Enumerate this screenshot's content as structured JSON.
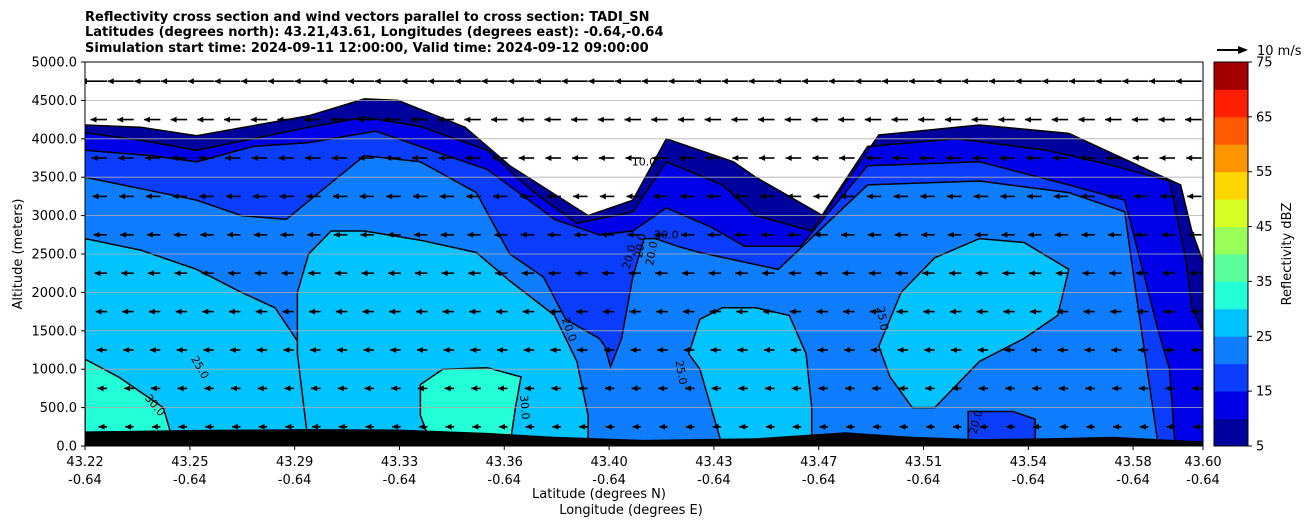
{
  "chart_data": {
    "type": "contour",
    "title": [
      "Reflectivity cross section and wind vectors parallel to cross section: TADI_SN",
      "Latitudes (degrees north): 43.21,43.61, Longitudes (degrees east): -0.64,-0.64",
      "Simulation start time: 2024-09-11 12:00:00, Valid time: 2024-09-12 09:00:00"
    ],
    "ylabel": "Altitude (meters)",
    "xlabel": "Latitude (degrees N)",
    "xlabel2": "Longitude (degrees E)",
    "ylim": [
      0,
      5000
    ],
    "yticks": [
      "0.0",
      "500.0",
      "1000.0",
      "1500.0",
      "2000.0",
      "2500.0",
      "3000.0",
      "3500.0",
      "4000.0",
      "4500.0",
      "5000.0"
    ],
    "xticks": [
      {
        "lat": "43.22",
        "lon": "-0.64"
      },
      {
        "lat": "43.25",
        "lon": "-0.64"
      },
      {
        "lat": "43.29",
        "lon": "-0.64"
      },
      {
        "lat": "43.33",
        "lon": "-0.64"
      },
      {
        "lat": "43.36",
        "lon": "-0.64"
      },
      {
        "lat": "43.40",
        "lon": "-0.64"
      },
      {
        "lat": "43.43",
        "lon": "-0.64"
      },
      {
        "lat": "43.47",
        "lon": "-0.64"
      },
      {
        "lat": "43.51",
        "lon": "-0.64"
      },
      {
        "lat": "43.54",
        "lon": "-0.64"
      },
      {
        "lat": "43.58",
        "lon": "-0.64"
      },
      {
        "lat": "43.60",
        "lon": "-0.64"
      }
    ],
    "grid": true,
    "colorbar": {
      "label": "Reflectivity dBZ",
      "ticks": [
        "5",
        "15",
        "25",
        "35",
        "45",
        "55",
        "65",
        "75"
      ],
      "levels": [
        5,
        10,
        15,
        20,
        25,
        30,
        35,
        40,
        45,
        50,
        55,
        60,
        65,
        70,
        75
      ],
      "colors": [
        "#00009c",
        "#0000e8",
        "#0a3dff",
        "#0f7dff",
        "#00c3ff",
        "#23ffd7",
        "#5aff9b",
        "#9bff5a",
        "#d7ff23",
        "#ffd700",
        "#ff9600",
        "#ff5a00",
        "#ff1e00",
        "#a50000"
      ]
    },
    "quiver_key": {
      "label": "10 m/s",
      "speed": 10
    },
    "contour_labels": [
      "10.0",
      "20.0",
      "20.0",
      "20.0",
      "20.0",
      "20.0",
      "25.0",
      "25.0",
      "25.0",
      "30.0",
      "30.0",
      "20.0"
    ],
    "terrain_color": "#000000",
    "x_range": [
      0,
      1
    ],
    "fields": [
      {
        "level": 5,
        "fill": "#00009c",
        "top": [
          [
            0,
            4180
          ],
          [
            0.05,
            4150
          ],
          [
            0.1,
            4040
          ],
          [
            0.2,
            4300
          ],
          [
            0.25,
            4520
          ],
          [
            0.28,
            4500
          ],
          [
            0.34,
            4150
          ],
          [
            0.38,
            3650
          ],
          [
            0.45,
            3000
          ],
          [
            0.49,
            3200
          ],
          [
            0.52,
            4000
          ],
          [
            0.58,
            3700
          ],
          [
            0.6,
            3500
          ],
          [
            0.66,
            3000
          ],
          [
            0.71,
            4050
          ],
          [
            0.8,
            4180
          ],
          [
            0.88,
            4070
          ],
          [
            0.95,
            3600
          ],
          [
            0.98,
            3400
          ],
          [
            0.99,
            2800
          ],
          [
            1,
            2400
          ]
        ],
        "bottom_clip": null
      },
      {
        "level": 10,
        "fill": "#0000e8",
        "top": [
          [
            0,
            4080
          ],
          [
            0.05,
            3980
          ],
          [
            0.1,
            3850
          ],
          [
            0.2,
            4150
          ],
          [
            0.25,
            4280
          ],
          [
            0.3,
            4160
          ],
          [
            0.36,
            3850
          ],
          [
            0.4,
            3320
          ],
          [
            0.44,
            2900
          ],
          [
            0.49,
            3050
          ],
          [
            0.52,
            3700
          ],
          [
            0.57,
            3400
          ],
          [
            0.6,
            3000
          ],
          [
            0.65,
            2800
          ],
          [
            0.7,
            3900
          ],
          [
            0.78,
            4000
          ],
          [
            0.86,
            3850
          ],
          [
            0.92,
            3650
          ],
          [
            0.97,
            3450
          ],
          [
            0.985,
            2400
          ],
          [
            0.99,
            1800
          ],
          [
            1,
            1500
          ]
        ]
      },
      {
        "level": 15,
        "fill": "#0a3dff",
        "top": [
          [
            0,
            3850
          ],
          [
            0.06,
            3780
          ],
          [
            0.1,
            3700
          ],
          [
            0.15,
            3900
          ],
          [
            0.2,
            3950
          ],
          [
            0.26,
            4100
          ],
          [
            0.3,
            3900
          ],
          [
            0.36,
            3600
          ],
          [
            0.42,
            2950
          ],
          [
            0.46,
            2750
          ],
          [
            0.49,
            2800
          ],
          [
            0.52,
            3100
          ],
          [
            0.56,
            2850
          ],
          [
            0.59,
            2600
          ],
          [
            0.64,
            2600
          ],
          [
            0.7,
            3650
          ],
          [
            0.8,
            3700
          ],
          [
            0.88,
            3400
          ],
          [
            0.93,
            3200
          ],
          [
            0.96,
            1500
          ],
          [
            0.97,
            1000
          ],
          [
            0.975,
            0
          ]
        ]
      },
      {
        "level": 20,
        "fill": "#0f7dff",
        "top": [
          [
            0,
            3500
          ],
          [
            0.05,
            3350
          ],
          [
            0.1,
            3200
          ],
          [
            0.14,
            3000
          ],
          [
            0.18,
            2950
          ],
          [
            0.25,
            3780
          ],
          [
            0.3,
            3700
          ],
          [
            0.35,
            3300
          ],
          [
            0.38,
            2500
          ],
          [
            0.41,
            2200
          ],
          [
            0.43,
            1650
          ],
          [
            0.46,
            1400
          ],
          [
            0.465,
            1300
          ],
          [
            0.47,
            1030
          ],
          [
            0.48,
            1400
          ],
          [
            0.49,
            2200
          ],
          [
            0.5,
            2700
          ],
          [
            0.51,
            2700
          ],
          [
            0.53,
            2600
          ],
          [
            0.55,
            2520
          ],
          [
            0.62,
            2300
          ],
          [
            0.7,
            3400
          ],
          [
            0.8,
            3450
          ],
          [
            0.88,
            3300
          ],
          [
            0.93,
            3050
          ],
          [
            0.94,
            2000
          ],
          [
            0.95,
            1000
          ],
          [
            0.96,
            0
          ]
        ]
      },
      {
        "level": 25,
        "fill": "#00c3ff"
      },
      {
        "level": 30,
        "fill": "#23ffd7"
      }
    ]
  }
}
